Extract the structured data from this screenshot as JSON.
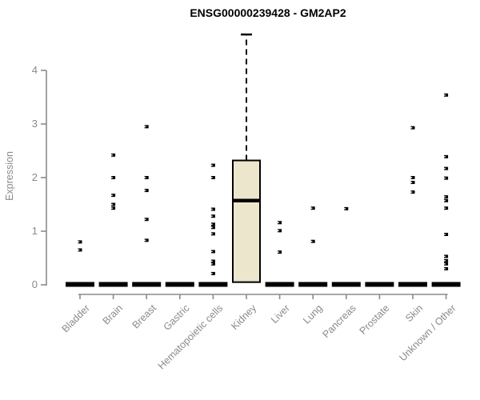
{
  "chart_data": {
    "type": "boxplot",
    "title": "ENSG00000239428 - GM2AP2",
    "ylabel": "Expression",
    "xlabel": "",
    "y_ticks": [
      0,
      1,
      2,
      3,
      4
    ],
    "ylim": [
      0,
      4.8
    ],
    "grid": false,
    "legend": false,
    "categories": [
      {
        "label": "Bladder",
        "zero_bar": true,
        "points": [
          0.8,
          0.65
        ]
      },
      {
        "label": "Brain",
        "zero_bar": true,
        "points": [
          2.42,
          2.0,
          1.67,
          1.5,
          1.43
        ]
      },
      {
        "label": "Breast",
        "zero_bar": true,
        "points": [
          2.95,
          2.0,
          1.76,
          1.22,
          0.83
        ]
      },
      {
        "label": "Gastric",
        "zero_bar": true,
        "points": []
      },
      {
        "label": "Hematopoietic cells",
        "zero_bar": true,
        "points": [
          2.23,
          2.0,
          1.41,
          1.28,
          1.13,
          1.07,
          0.95,
          0.62,
          0.44,
          0.39,
          0.21
        ]
      },
      {
        "label": "Kidney",
        "zero_bar": false,
        "points": [],
        "box": {
          "q1": 0.05,
          "median": 1.57,
          "q3": 2.32,
          "whisker_high": 4.67
        }
      },
      {
        "label": "Liver",
        "zero_bar": true,
        "points": [
          1.16,
          1.01,
          0.61
        ]
      },
      {
        "label": "Lung",
        "zero_bar": true,
        "points": [
          1.43,
          0.81
        ]
      },
      {
        "label": "Pancreas",
        "zero_bar": true,
        "points": [
          1.42
        ]
      },
      {
        "label": "Prostate",
        "zero_bar": true,
        "points": []
      },
      {
        "label": "Skin",
        "zero_bar": true,
        "points": [
          2.93,
          2.0,
          1.91,
          1.73
        ]
      },
      {
        "label": "Unknown / Other",
        "zero_bar": true,
        "points": [
          3.54,
          2.39,
          2.17,
          1.99,
          1.64,
          1.57,
          1.43,
          0.94,
          0.53,
          0.45,
          0.39,
          0.3
        ]
      }
    ],
    "colors": {
      "box_fill": "#ece6cd",
      "box_stroke": "#000000",
      "median": "#000000",
      "point": "#000000",
      "zero_bar": "#000000",
      "axis": "#8a8a8a",
      "title": "#000000"
    }
  }
}
